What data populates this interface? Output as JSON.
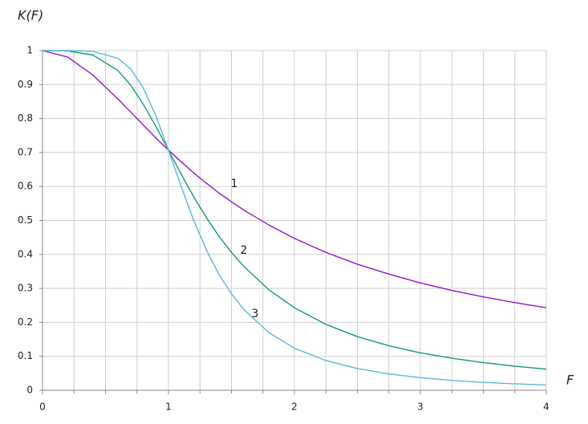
{
  "chart_data": {
    "type": "line",
    "ylabel": "K(F)",
    "xlabel": "F",
    "x": [
      0,
      0.2,
      0.4,
      0.6,
      0.7,
      0.8,
      0.9,
      1,
      1.1,
      1.2,
      1.3,
      1.4,
      1.5,
      1.6,
      1.8,
      2,
      2.25,
      2.5,
      2.75,
      3,
      3.25,
      3.5,
      3.75,
      4
    ],
    "series": [
      {
        "name": "1",
        "color": "#9513d0",
        "values": [
          1,
          0.981,
          0.928,
          0.857,
          0.819,
          0.781,
          0.743,
          0.707,
          0.673,
          0.64,
          0.61,
          0.581,
          0.555,
          0.53,
          0.486,
          0.447,
          0.406,
          0.371,
          0.342,
          0.316,
          0.294,
          0.275,
          0.258,
          0.243
        ]
      },
      {
        "name": "2",
        "color": "#109c78",
        "values": [
          1,
          0.999,
          0.987,
          0.941,
          0.898,
          0.842,
          0.777,
          0.707,
          0.637,
          0.57,
          0.509,
          0.454,
          0.406,
          0.364,
          0.295,
          0.243,
          0.194,
          0.158,
          0.131,
          0.11,
          0.0943,
          0.0814,
          0.0709,
          0.0623
        ]
      },
      {
        "name": "3",
        "color": "#5ab8dc",
        "values": [
          1,
          1,
          0.998,
          0.977,
          0.946,
          0.89,
          0.808,
          0.707,
          0.601,
          0.501,
          0.414,
          0.342,
          0.284,
          0.237,
          0.169,
          0.124,
          0.0875,
          0.0639,
          0.048,
          0.037,
          0.0291,
          0.0233,
          0.019,
          0.0156
        ]
      }
    ],
    "xlim": [
      0,
      4
    ],
    "xticks": [
      0,
      1,
      2,
      3,
      4
    ],
    "xminorticks": [
      0.25,
      0.5,
      0.75,
      1.25,
      1.5,
      1.75,
      2.25,
      2.5,
      2.75,
      3.25,
      3.5,
      3.75
    ],
    "ylim": [
      0,
      1
    ],
    "yticks": [
      0,
      0.1,
      0.2,
      0.3,
      0.4,
      0.5,
      0.6,
      0.7,
      0.8,
      0.9,
      1
    ],
    "grid": true
  }
}
